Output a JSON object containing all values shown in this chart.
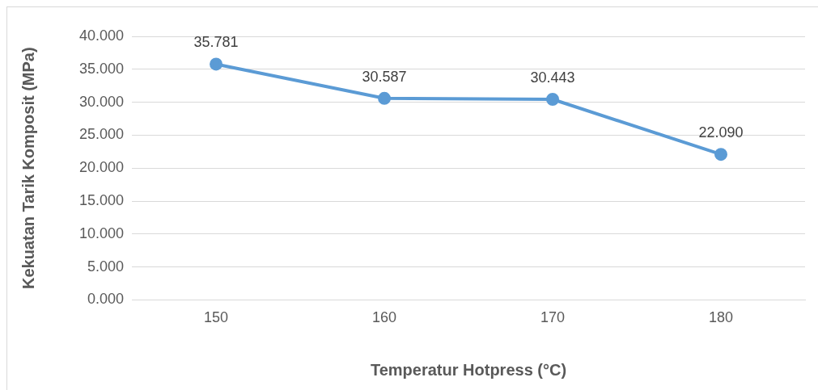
{
  "chart_data": {
    "type": "line",
    "xlabel": "Temperatur Hotpress (°C)",
    "ylabel": "Kekuatan Tarik Komposit (MPa)",
    "categories": [
      "150",
      "160",
      "170",
      "180"
    ],
    "series": [
      {
        "color": "#5b9bd5",
        "values": [
          35.781,
          30.587,
          30.443,
          22.09
        ],
        "value_labels": [
          "35.781",
          "30.587",
          "30.443",
          "22.090"
        ]
      }
    ],
    "ylim": [
      0,
      40
    ],
    "yticks": [
      {
        "value": 0,
        "label": "0.000"
      },
      {
        "value": 5,
        "label": "5.000"
      },
      {
        "value": 10,
        "label": "10.000"
      },
      {
        "value": 15,
        "label": "15.000"
      },
      {
        "value": 20,
        "label": "20.000"
      },
      {
        "value": 25,
        "label": "25.000"
      },
      {
        "value": 30,
        "label": "30.000"
      },
      {
        "value": 35,
        "label": "35.000"
      },
      {
        "value": 40,
        "label": "40.000"
      }
    ],
    "grid": "y",
    "legend": false,
    "marker": "circle",
    "line_style": "solid"
  }
}
